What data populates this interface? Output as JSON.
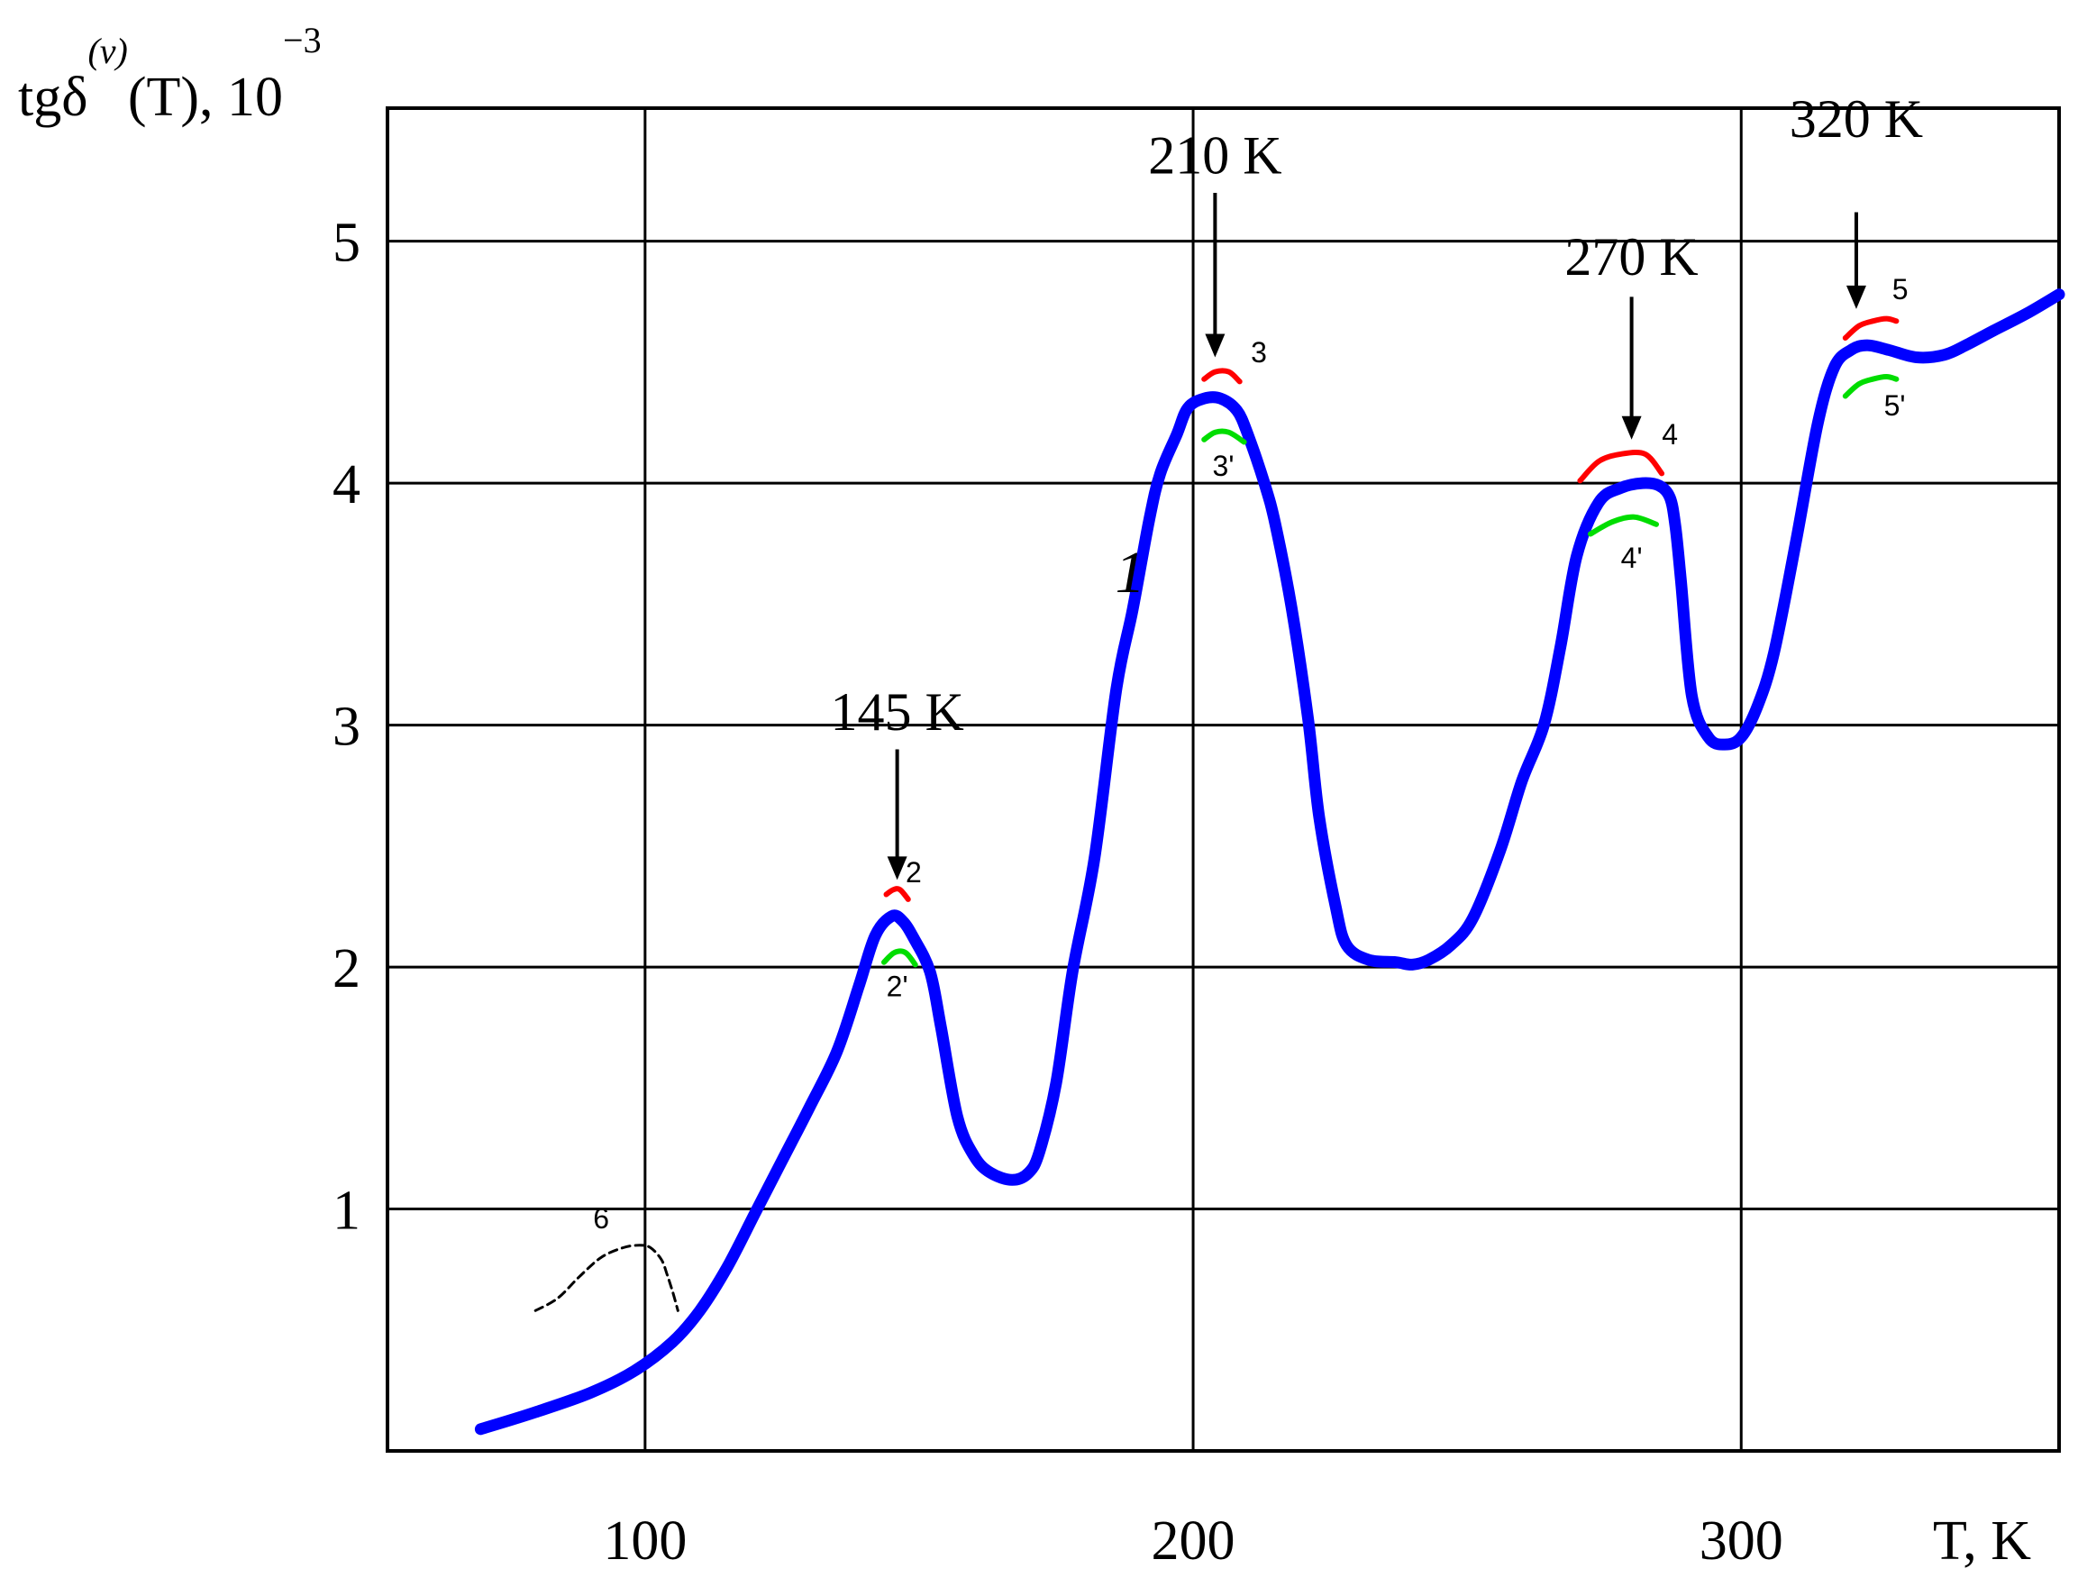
{
  "chart_data": {
    "type": "line",
    "ylabel": "tgδ",
    "ylabel_superscript": "(v)",
    "ylabel_suffix": "(T), 10",
    "ylabel_exponent": "−3",
    "xlabel": "T, K",
    "xlim": [
      53,
      358
    ],
    "ylim": [
      0,
      5.55
    ],
    "x_ticks": [
      {
        "value": 100,
        "label": "100"
      },
      {
        "value": 200,
        "label": "200"
      },
      {
        "value": 300,
        "label": "300"
      }
    ],
    "y_ticks": [
      {
        "value": 1,
        "label": "1"
      },
      {
        "value": 2,
        "label": "2"
      },
      {
        "value": 3,
        "label": "3"
      },
      {
        "value": 4,
        "label": "4"
      },
      {
        "value": 5,
        "label": "5"
      }
    ],
    "grid": true,
    "series": [
      {
        "name": "1",
        "color": "#0000ff",
        "style": "solid-thick",
        "x": [
          70,
          80,
          90,
          98,
          105,
          110,
          115,
          120,
          125,
          130,
          135,
          139,
          142,
          145,
          147,
          149,
          152,
          154,
          157,
          160,
          163,
          167,
          170,
          172,
          175,
          178,
          182,
          186,
          189,
          192,
          194,
          197,
          199,
          202,
          205,
          208,
          210,
          213,
          215,
          218,
          221,
          223,
          226,
          228,
          232,
          237,
          240,
          243,
          247,
          251,
          256,
          260,
          264,
          267,
          270,
          274,
          278,
          282,
          285,
          287,
          288,
          289,
          291,
          294,
          297,
          300,
          303,
          306,
          310,
          314,
          317,
          320,
          323,
          327,
          332,
          337,
          341,
          346,
          352,
          358
        ],
        "y": [
          0.09,
          0.16,
          0.24,
          0.33,
          0.45,
          0.58,
          0.76,
          0.98,
          1.2,
          1.42,
          1.65,
          1.92,
          2.13,
          2.21,
          2.19,
          2.12,
          1.98,
          1.75,
          1.38,
          1.22,
          1.15,
          1.12,
          1.15,
          1.24,
          1.52,
          1.98,
          2.45,
          3.15,
          3.48,
          3.85,
          4.04,
          4.2,
          4.31,
          4.35,
          4.35,
          4.3,
          4.2,
          4.0,
          3.83,
          3.48,
          3.02,
          2.62,
          2.25,
          2.09,
          2.03,
          2.02,
          2.01,
          2.03,
          2.09,
          2.2,
          2.48,
          2.77,
          3.0,
          3.32,
          3.7,
          3.92,
          3.98,
          4.0,
          3.99,
          3.94,
          3.82,
          3.6,
          3.12,
          2.95,
          2.92,
          2.95,
          3.08,
          3.3,
          3.76,
          4.25,
          4.48,
          4.55,
          4.57,
          4.55,
          4.52,
          4.53,
          4.57,
          4.63,
          4.7,
          4.78
        ]
      },
      {
        "name": "6",
        "color": "#000000",
        "style": "dashed",
        "x": [
          80,
          84,
          88,
          92,
          96,
          99,
          101,
          103,
          104,
          105,
          106
        ],
        "y": [
          0.58,
          0.63,
          0.72,
          0.8,
          0.84,
          0.85,
          0.84,
          0.79,
          0.73,
          0.66,
          0.58
        ]
      }
    ],
    "markers": [
      {
        "name": "2",
        "color": "#ff0000",
        "x": [
          144,
          145.3,
          146.5,
          148
        ],
        "y": [
          2.3,
          2.32,
          2.32,
          2.28
        ]
      },
      {
        "name": "2'",
        "color": "#00dd00",
        "x": [
          143.6,
          145.5,
          147.5,
          149.3
        ],
        "y": [
          2.02,
          2.06,
          2.06,
          2.01
        ]
      },
      {
        "name": "3",
        "color": "#ff0000",
        "x": [
          202,
          204,
          206.5,
          208.5
        ],
        "y": [
          4.43,
          4.46,
          4.46,
          4.42
        ]
      },
      {
        "name": "3'",
        "color": "#00dd00",
        "x": [
          202,
          204,
          206.5,
          209.3
        ],
        "y": [
          4.18,
          4.21,
          4.21,
          4.17
        ]
      },
      {
        "name": "4",
        "color": "#ff0000",
        "x": [
          270.6,
          274,
          278,
          282.5,
          285.5
        ],
        "y": [
          4.01,
          4.09,
          4.12,
          4.12,
          4.04
        ]
      },
      {
        "name": "4'",
        "color": "#00dd00",
        "x": [
          272.5,
          276.5,
          280.5,
          284.5
        ],
        "y": [
          3.79,
          3.84,
          3.86,
          3.83
        ]
      },
      {
        "name": "5",
        "color": "#ff0000",
        "x": [
          319,
          321.5,
          324,
          326.5,
          328.3
        ],
        "y": [
          4.6,
          4.65,
          4.67,
          4.68,
          4.67
        ]
      },
      {
        "name": "5'",
        "color": "#00dd00",
        "x": [
          319,
          321.5,
          324,
          326.5,
          328.3
        ],
        "y": [
          4.36,
          4.41,
          4.43,
          4.44,
          4.43
        ]
      }
    ],
    "annotations": [
      {
        "text": "145 K",
        "arrow_x": 146,
        "arrow_y_from": 2.9,
        "arrow_y_to": 2.36,
        "text_y": 2.98
      },
      {
        "text": "210 K",
        "arrow_x": 204,
        "arrow_y_from": 5.2,
        "arrow_y_to": 4.52,
        "text_y": 5.28
      },
      {
        "text": "270 K",
        "arrow_x": 280,
        "arrow_y_from": 4.77,
        "arrow_y_to": 4.18,
        "text_y": 4.86
      },
      {
        "text": "320 K",
        "arrow_x": 321,
        "arrow_y_from": 5.12,
        "arrow_y_to": 4.72,
        "text_y": 5.43
      }
    ],
    "series_label_positions": [
      {
        "text": "1",
        "x": 188.5,
        "y": 3.55,
        "italic": true,
        "big": true
      },
      {
        "text": "2",
        "x": 149,
        "y": 2.35
      },
      {
        "text": "2'",
        "x": 146,
        "y": 1.88
      },
      {
        "text": "3",
        "x": 212,
        "y": 4.5
      },
      {
        "text": "3'",
        "x": 205.5,
        "y": 4.03
      },
      {
        "text": "4",
        "x": 287,
        "y": 4.16
      },
      {
        "text": "4'",
        "x": 280,
        "y": 3.65
      },
      {
        "text": "5",
        "x": 329,
        "y": 4.76
      },
      {
        "text": "5'",
        "x": 328,
        "y": 4.28
      },
      {
        "text": "6",
        "x": 92,
        "y": 0.92
      }
    ]
  }
}
